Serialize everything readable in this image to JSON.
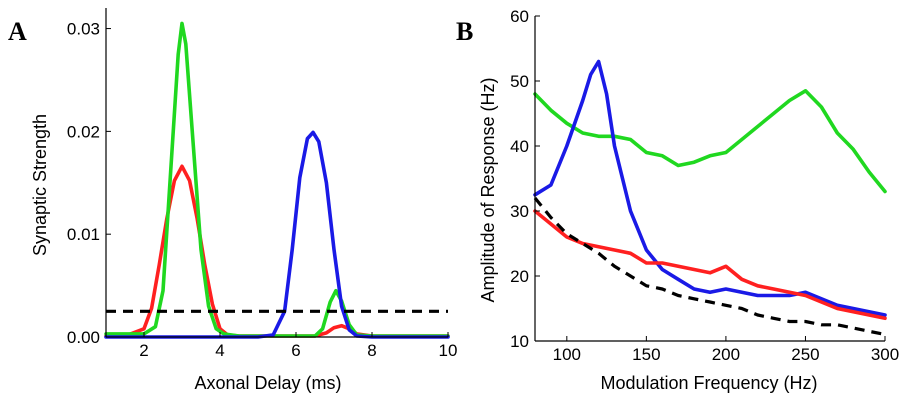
{
  "chart_data": [
    {
      "type": "line",
      "panel_label": "A",
      "xlabel": "Axonal Delay (ms)",
      "ylabel": "Synaptic Strength",
      "xlim": [
        1,
        10
      ],
      "ylim": [
        0,
        0.032
      ],
      "xticks": [
        "2",
        "4",
        "6",
        "8",
        "10"
      ],
      "yticks": [
        "0.00",
        "0.01",
        "0.02",
        "0.03"
      ],
      "grid": false,
      "series": [
        {
          "color": "#ff2020",
          "x": [
            1.0,
            1.5,
            2.0,
            2.2,
            2.4,
            2.6,
            2.8,
            3.0,
            3.2,
            3.4,
            3.6,
            3.8,
            4.0,
            4.2,
            4.5,
            5.0,
            6.0,
            6.5,
            6.8,
            7.0,
            7.2,
            7.4,
            7.6,
            8.0,
            9.0,
            10.0
          ],
          "y": [
            0.0001,
            0.0001,
            0.0008,
            0.0028,
            0.007,
            0.0115,
            0.0152,
            0.0166,
            0.0152,
            0.0115,
            0.007,
            0.0032,
            0.0008,
            0.0002,
            0.0001,
            0.0001,
            0.0001,
            0.0001,
            0.0004,
            0.0009,
            0.0011,
            0.0008,
            0.0003,
            0.0001,
            0.0001,
            0.0001
          ]
        },
        {
          "color": "#20d820",
          "x": [
            1.0,
            2.0,
            2.3,
            2.5,
            2.7,
            2.9,
            3.0,
            3.1,
            3.3,
            3.5,
            3.7,
            3.9,
            4.1,
            4.5,
            5.0,
            6.0,
            6.5,
            6.7,
            6.9,
            7.05,
            7.2,
            7.4,
            7.6,
            8.0,
            9.0,
            10.0
          ],
          "y": [
            0.0003,
            0.0003,
            0.001,
            0.0045,
            0.016,
            0.0275,
            0.0305,
            0.0285,
            0.0185,
            0.0085,
            0.003,
            0.0008,
            0.0003,
            0.0001,
            0.0001,
            0.0001,
            0.0001,
            0.0008,
            0.0034,
            0.0045,
            0.0035,
            0.0012,
            0.0002,
            0.0001,
            0.0001,
            0.0001
          ]
        },
        {
          "color": "#1a1ae6",
          "x": [
            1.0,
            5.0,
            5.4,
            5.7,
            5.9,
            6.1,
            6.3,
            6.45,
            6.6,
            6.8,
            7.0,
            7.2,
            7.4,
            7.6,
            8.0,
            10.0
          ],
          "y": [
            0.0,
            0.0,
            0.0002,
            0.0025,
            0.0085,
            0.0155,
            0.0193,
            0.0199,
            0.019,
            0.015,
            0.0085,
            0.003,
            0.0007,
            0.0001,
            0.0,
            0.0
          ]
        },
        {
          "color": "#000000",
          "dashed": true,
          "x": [
            1,
            10
          ],
          "y": [
            0.0025,
            0.0025
          ]
        }
      ]
    },
    {
      "type": "line",
      "panel_label": "B",
      "xlabel": "Modulation Frequency (Hz)",
      "ylabel": "Amplitude of Response (Hz)",
      "xlim": [
        80,
        300
      ],
      "ylim": [
        10,
        60
      ],
      "xticks": [
        "100",
        "150",
        "200",
        "250",
        "300"
      ],
      "yticks": [
        "10",
        "20",
        "30",
        "40",
        "50",
        "60"
      ],
      "grid": false,
      "series": [
        {
          "color": "#20d820",
          "x": [
            80,
            90,
            100,
            110,
            120,
            130,
            140,
            150,
            160,
            170,
            180,
            190,
            200,
            210,
            220,
            230,
            240,
            250,
            260,
            270,
            280,
            290,
            300
          ],
          "y": [
            48,
            45.5,
            43.5,
            42,
            41.5,
            41.5,
            41,
            39,
            38.5,
            37,
            37.5,
            38.5,
            39,
            41,
            43,
            45,
            47,
            48.5,
            46,
            42,
            39.5,
            36,
            33
          ]
        },
        {
          "color": "#1a1ae6",
          "x": [
            80,
            90,
            100,
            110,
            115,
            120,
            125,
            130,
            140,
            150,
            160,
            170,
            180,
            190,
            200,
            210,
            220,
            230,
            240,
            250,
            260,
            270,
            280,
            290,
            300
          ],
          "y": [
            32.5,
            34,
            40,
            47,
            51,
            53,
            48,
            40,
            30,
            24,
            21,
            19.5,
            18,
            17.5,
            18,
            17.5,
            17,
            17,
            17,
            17.5,
            16.5,
            15.5,
            15,
            14.5,
            14
          ]
        },
        {
          "color": "#ff2020",
          "x": [
            80,
            90,
            100,
            110,
            120,
            130,
            140,
            150,
            160,
            170,
            180,
            190,
            200,
            210,
            220,
            230,
            240,
            250,
            260,
            270,
            280,
            290,
            300
          ],
          "y": [
            30,
            28,
            26,
            25,
            24.5,
            24,
            23.5,
            22,
            22,
            21.5,
            21,
            20.5,
            21.5,
            19.5,
            18.5,
            18,
            17.5,
            17,
            16,
            15,
            14.5,
            14,
            13.5
          ]
        },
        {
          "color": "#000000",
          "dashed": true,
          "x": [
            80,
            90,
            100,
            110,
            120,
            130,
            140,
            150,
            160,
            170,
            180,
            190,
            200,
            210,
            220,
            230,
            240,
            250,
            260,
            270,
            280,
            290,
            300
          ],
          "y": [
            32,
            29,
            26.5,
            25,
            23.5,
            21.5,
            20,
            18.5,
            18,
            17,
            16.5,
            16,
            15.5,
            15,
            14,
            13.5,
            13,
            13,
            12.5,
            12.5,
            12,
            11.5,
            11
          ]
        }
      ]
    }
  ]
}
